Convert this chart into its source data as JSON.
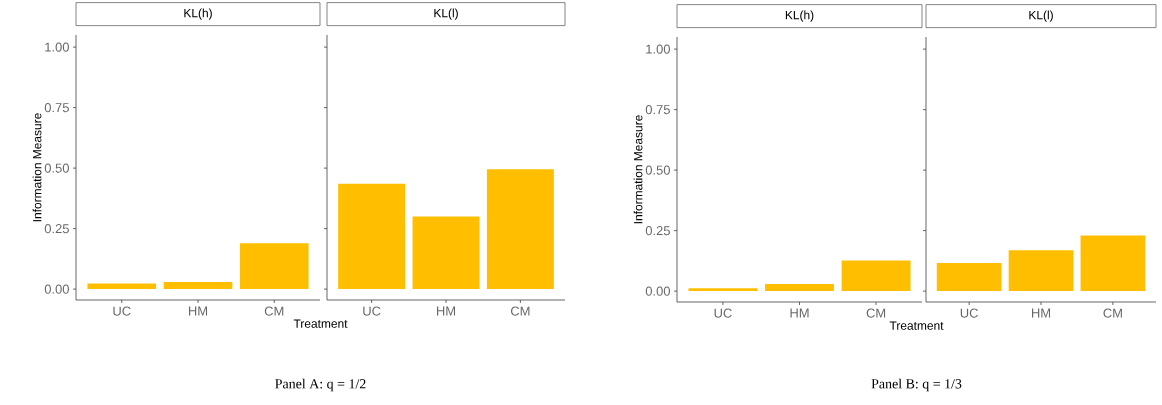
{
  "chart_data": [
    {
      "type": "bar",
      "title": "KL(h)",
      "xlabel": "Treatment",
      "ylabel": "Information Measure",
      "categories": [
        "UC",
        "HM",
        "CM"
      ],
      "values": [
        0.023,
        0.029,
        0.19
      ],
      "color": "#ffbf00",
      "ylim": [
        -0.045,
        1.05
      ],
      "yticks": [
        {
          "value": 0,
          "label": "0.00"
        },
        {
          "value": 0.25,
          "label": "0.25"
        },
        {
          "value": 0.5,
          "label": "0.50"
        },
        {
          "value": 0.75,
          "label": "0.75"
        },
        {
          "value": 1,
          "label": "1.00"
        }
      ],
      "annotations": [
        "Panel A: q = 1/2"
      ]
    },
    {
      "type": "bar",
      "title": "KL(l)",
      "categories": [
        "UC",
        "HM",
        "CM"
      ],
      "values": [
        0.435,
        0.3,
        0.495
      ],
      "color": "#ffbf00",
      "ylim": [
        -0.045,
        1.05
      ],
      "yticks": [
        {
          "value": 0,
          "label": null
        },
        {
          "value": 0.25,
          "label": null
        },
        {
          "value": 0.5,
          "label": null
        },
        {
          "value": 0.75,
          "label": null
        },
        {
          "value": 1,
          "label": null
        }
      ],
      "tick_labels": "x"
    },
    {
      "type": "bar",
      "title": "KL(h)",
      "xlabel": "Treatment",
      "ylabel": "Information Measure",
      "categories": [
        "UC",
        "HM",
        "CM"
      ],
      "values": [
        0.012,
        0.029,
        0.127
      ],
      "color": "#ffbf00",
      "ylim": [
        -0.045,
        1.05
      ],
      "yticks": [
        {
          "value": 0,
          "label": "0.00"
        },
        {
          "value": 0.25,
          "label": "0.25"
        },
        {
          "value": 0.5,
          "label": "0.50"
        },
        {
          "value": 0.75,
          "label": "0.75"
        },
        {
          "value": 1,
          "label": "1.00"
        }
      ],
      "annotations": [
        "Panel B: q = 1/3"
      ]
    },
    {
      "type": "bar",
      "title": "KL(l)",
      "categories": [
        "UC",
        "HM",
        "CM"
      ],
      "values": [
        0.116,
        0.169,
        0.23
      ],
      "color": "#ffbf00",
      "ylim": [
        -0.045,
        1.05
      ],
      "yticks": [
        {
          "value": 0,
          "label": null
        },
        {
          "value": 0.25,
          "label": null
        },
        {
          "value": 0.5,
          "label": null
        },
        {
          "value": 0.75,
          "label": null
        },
        {
          "value": 1,
          "label": null
        }
      ],
      "tick_labels": "x"
    }
  ]
}
